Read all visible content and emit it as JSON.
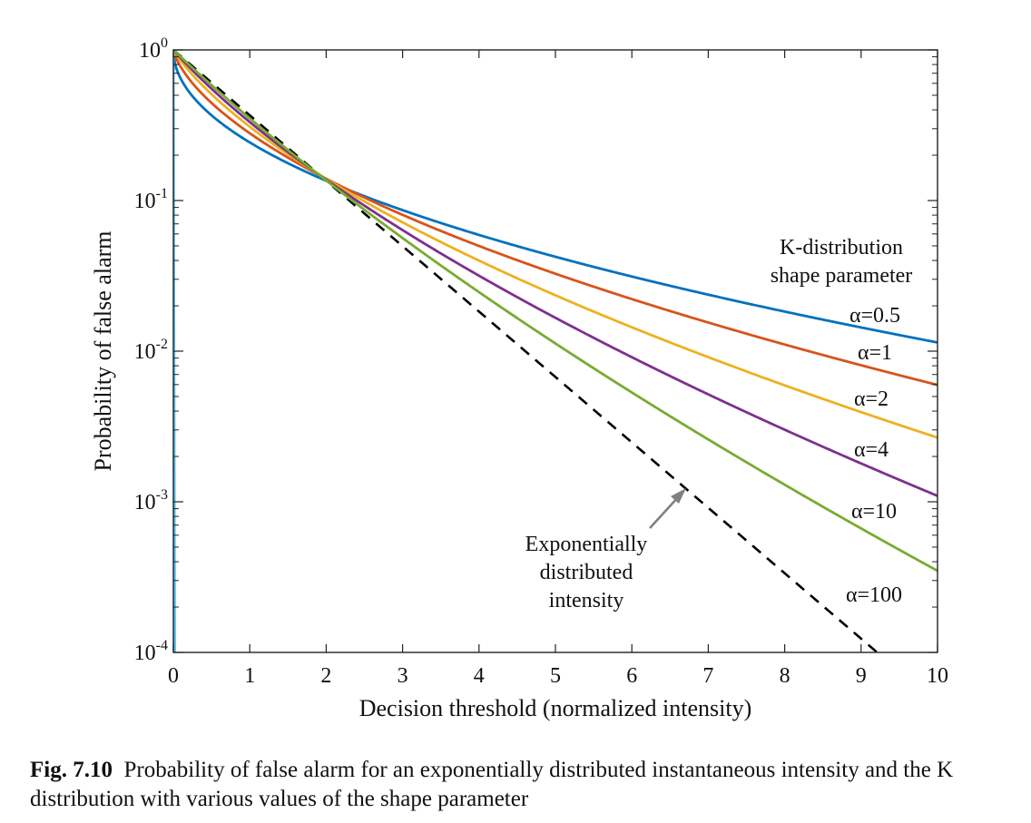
{
  "chart_data": {
    "type": "line",
    "xlabel": "Decision threshold (normalized intensity)",
    "ylabel": "Probability of false alarm",
    "xlim": [
      0,
      10
    ],
    "ylim": [
      0.0001,
      1
    ],
    "yscale": "log",
    "x_ticks": [
      "0",
      "1",
      "2",
      "3",
      "4",
      "5",
      "6",
      "7",
      "8",
      "9",
      "10"
    ],
    "y_ticks": [
      {
        "base": "10",
        "exp": "0",
        "value": 1
      },
      {
        "base": "10",
        "exp": "-1",
        "value": 0.1
      },
      {
        "base": "10",
        "exp": "-2",
        "value": 0.01
      },
      {
        "base": "10",
        "exp": "-3",
        "value": 0.001
      },
      {
        "base": "10",
        "exp": "-4",
        "value": 0.0001
      }
    ],
    "grid": false,
    "legend_title_lines": [
      "K-distribution",
      "shape parameter"
    ],
    "series": [
      {
        "name": "α=0.5",
        "alpha": 0.5,
        "color": "#0072BD"
      },
      {
        "name": "α=1",
        "alpha": 1,
        "color": "#D95319"
      },
      {
        "name": "α=2",
        "alpha": 2,
        "color": "#EDB120"
      },
      {
        "name": "α=4",
        "alpha": 4,
        "color": "#7E2F8E"
      },
      {
        "name": "α=10",
        "alpha": 10,
        "color": "#77AC30"
      },
      {
        "name": "α=100",
        "alpha": 100,
        "color": "#4DBEEE"
      }
    ],
    "exponential": {
      "label_lines": [
        "Exponentially",
        "distributed",
        "intensity"
      ],
      "color": "#000000",
      "style": "dashed"
    }
  },
  "caption": {
    "label": "Fig. 7.10",
    "text": "Probability of false alarm for an exponentially distributed instantaneous intensity and the K distribution with various values of the shape parameter"
  }
}
